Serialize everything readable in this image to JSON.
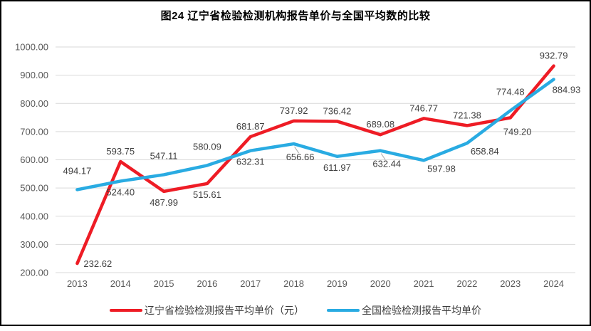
{
  "chart_data": {
    "type": "line",
    "title": "图24 辽宁省检验检测机构报告单价与全国平均数的比较",
    "categories": [
      "2013",
      "2014",
      "2015",
      "2016",
      "2017",
      "2018",
      "2019",
      "2020",
      "2021",
      "2022",
      "2023",
      "2024"
    ],
    "series": [
      {
        "name": "辽宁省检验检测报告平均单价（元）",
        "color": "#EE1C25",
        "values": [
          232.62,
          593.75,
          487.99,
          515.61,
          681.87,
          737.92,
          736.42,
          689.08,
          746.77,
          721.38,
          749.2,
          932.79
        ],
        "label_positions": [
          "right",
          "above",
          "below",
          "below",
          "above",
          "above",
          "above",
          "above",
          "above",
          "above",
          "below-right-far",
          "above"
        ]
      },
      {
        "name": "全国检验检测报告平均单价",
        "color": "#29ABE2",
        "values": [
          494.17,
          524.4,
          547.11,
          580.09,
          632.31,
          656.66,
          611.97,
          632.44,
          597.98,
          658.84,
          774.48,
          884.93
        ],
        "label_positions": [
          "above-far",
          "below",
          "above-far",
          "above-far",
          "below",
          "below-leader",
          "below",
          "below-leader",
          "below-right",
          "below-right",
          "above-far",
          "right-below"
        ]
      }
    ],
    "ylim": [
      200,
      1000
    ],
    "ytick_step": 100,
    "ytick_labels": [
      "200.00",
      "300.00",
      "400.00",
      "500.00",
      "600.00",
      "700.00",
      "800.00",
      "900.00",
      "1000.00"
    ],
    "grid": "horizontal-only",
    "legend_position": "bottom",
    "colors": {
      "gridline": "#D9D9D9",
      "axis_tick_label": "#595959",
      "data_label": "#404040",
      "leader_line": "#A6A6A6",
      "frame_border": "#000000",
      "background": "#FFFFFF"
    }
  }
}
